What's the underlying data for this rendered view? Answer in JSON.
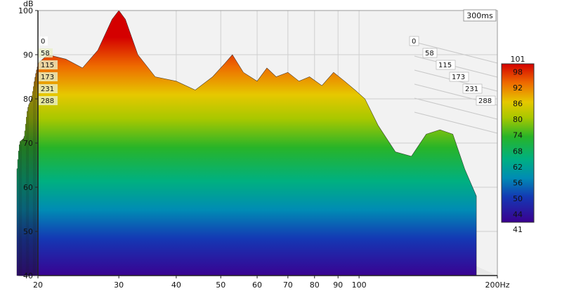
{
  "chart_data": {
    "type": "waterfall",
    "title": "",
    "xlabel": "",
    "ylabel": "dB",
    "ylim": [
      40,
      100
    ],
    "yticks": [
      40,
      50,
      60,
      70,
      80,
      90,
      100
    ],
    "x_scale": "log",
    "xlim": [
      20,
      200
    ],
    "xtick_labels": [
      "20",
      "30",
      "40",
      "50",
      "60",
      "70",
      "80",
      "90",
      "100",
      "200Hz"
    ],
    "xtick_values": [
      20,
      30,
      40,
      50,
      60,
      70,
      80,
      90,
      100,
      200
    ],
    "time_badge": "300ms",
    "time_labels_left": [
      "0",
      "58",
      "115",
      "173",
      "231",
      "288"
    ],
    "time_labels_depth": [
      "0",
      "58",
      "115",
      "173",
      "231",
      "288"
    ],
    "time_slices_ms": [
      0,
      58,
      115,
      173,
      231,
      288
    ],
    "colorbar": {
      "min": 41,
      "max": 101,
      "tick_labels": [
        "101",
        "98",
        "92",
        "86",
        "80",
        "74",
        "68",
        "62",
        "56",
        "50",
        "44",
        "41"
      ],
      "tick_values": [
        101,
        98,
        92,
        86,
        80,
        74,
        68,
        62,
        56,
        50,
        44,
        41
      ]
    },
    "front_slice_0ms": {
      "x_hz": [
        20,
        21,
        23,
        25,
        27,
        29,
        30,
        31,
        33,
        36,
        40,
        44,
        48,
        51,
        53,
        56,
        60,
        63,
        66,
        70,
        74,
        78,
        83,
        88,
        93,
        98,
        103,
        110,
        120,
        130,
        140,
        150,
        160,
        170,
        180
      ],
      "db": [
        88,
        90,
        89,
        87,
        91,
        98,
        100,
        98,
        90,
        85,
        84,
        82,
        85,
        88,
        90,
        86,
        84,
        87,
        85,
        86,
        84,
        85,
        83,
        86,
        84,
        82,
        80,
        74,
        68,
        67,
        72,
        73,
        72,
        64,
        58
      ]
    }
  }
}
